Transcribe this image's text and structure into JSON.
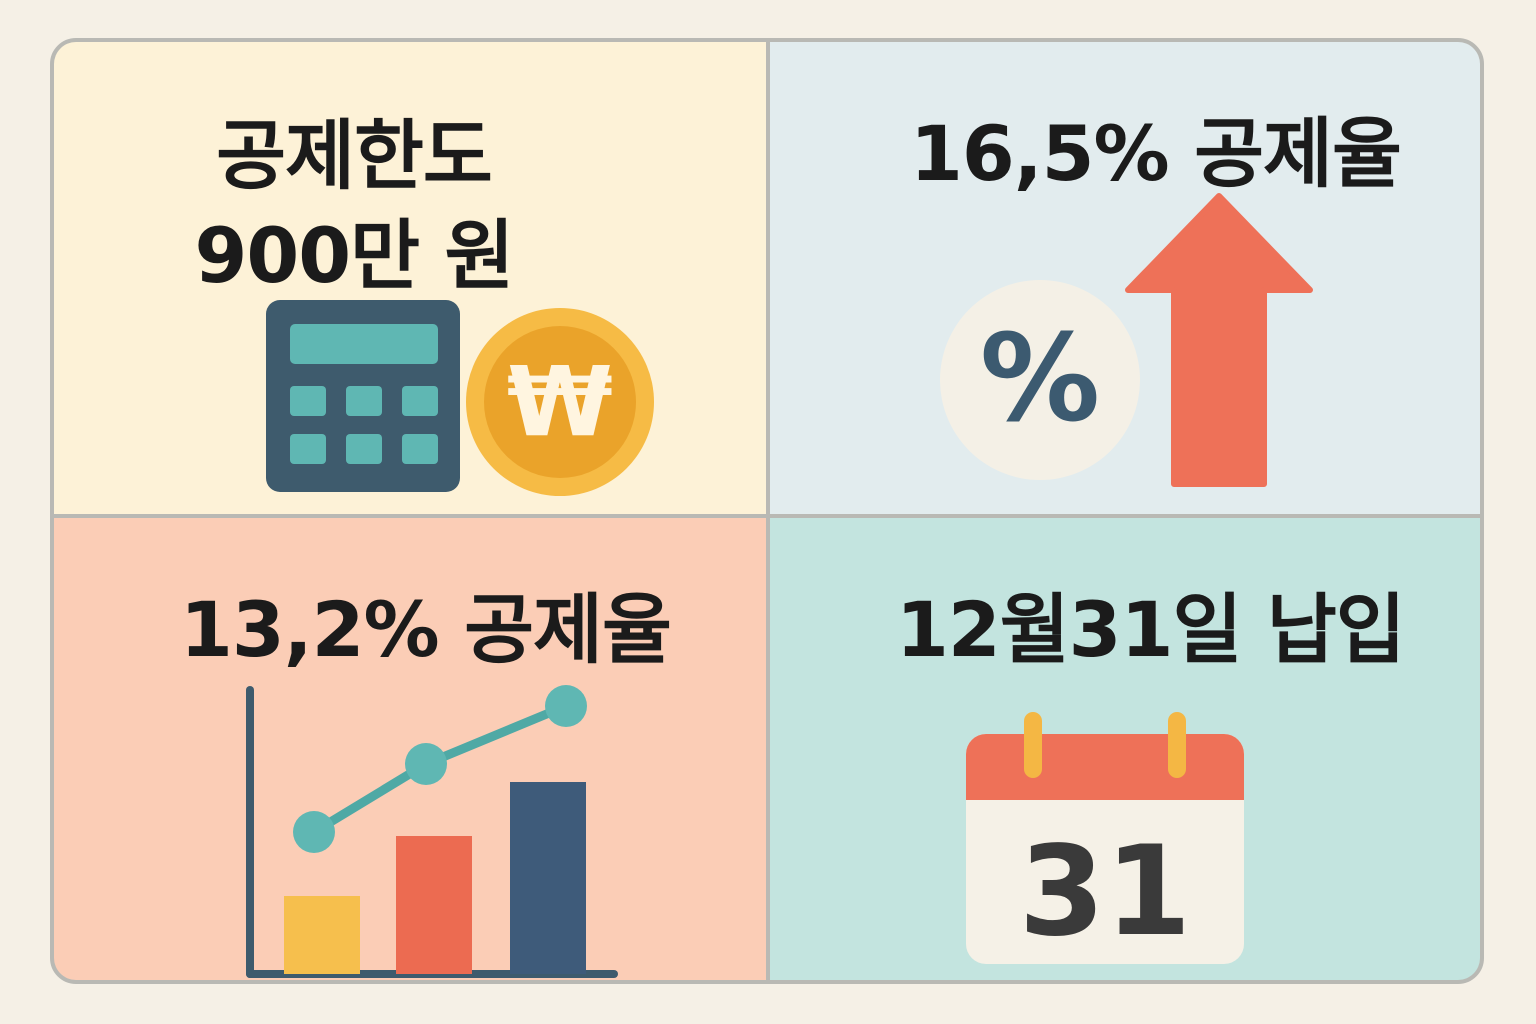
{
  "panels": {
    "limit": {
      "title_line1": "공제한도",
      "title_line2": "900만 원",
      "coin_symbol": "₩"
    },
    "rate_high": {
      "title": "16,5% 공제율",
      "percent_symbol": "%"
    },
    "rate_low": {
      "title": "13,2% 공제율"
    },
    "deadline": {
      "title": "12월31일 납입",
      "calendar_day": "31"
    }
  },
  "icons": [
    "calculator-icon",
    "won-coin-icon",
    "percent-icon",
    "up-arrow-icon",
    "growth-chart-icon",
    "calendar-icon"
  ],
  "colors": {
    "panel_limit": "#fdf2d7",
    "panel_rate_high": "#e2ecee",
    "panel_rate_low": "#fbcdb6",
    "panel_deadline": "#c3e4df",
    "teal": "#5fb7b3",
    "navy": "#3e5b6d",
    "coral": "#ee7158",
    "gold": "#f6bb45"
  }
}
